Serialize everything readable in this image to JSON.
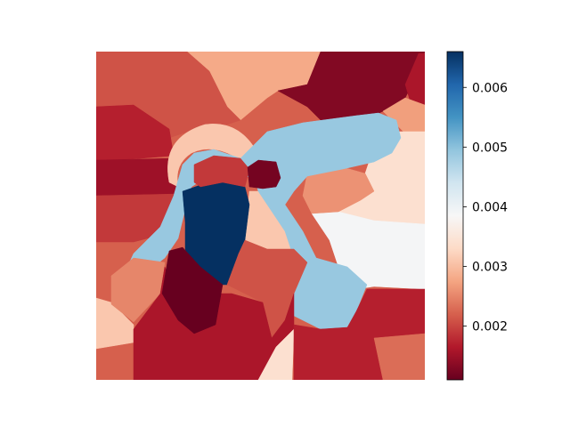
{
  "chart_data": {
    "type": "heatmap",
    "title": "",
    "xlabel": "",
    "ylabel": "",
    "colormap": "RdBu",
    "colorbar": {
      "range": [
        0.0011,
        0.0066
      ],
      "ticks": [
        {
          "value": 0.002,
          "label": "0.002"
        },
        {
          "value": 0.003,
          "label": "0.003"
        },
        {
          "value": 0.004,
          "label": "0.004"
        },
        {
          "value": 0.005,
          "label": "0.005"
        },
        {
          "value": 0.006,
          "label": "0.006"
        }
      ]
    },
    "segments": [
      {
        "name": "top-center",
        "value": 0.0028
      },
      {
        "name": "top-left",
        "value": 0.0021
      },
      {
        "name": "left-upper",
        "value": 0.0017
      },
      {
        "name": "left-middle",
        "value": 0.0015
      },
      {
        "name": "left-lower",
        "value": 0.0019
      },
      {
        "name": "top-right-dark",
        "value": 0.0013
      },
      {
        "name": "right-upper-edge",
        "value": 0.0016
      },
      {
        "name": "right-upper-orange",
        "value": 0.0027
      },
      {
        "name": "right-peach",
        "value": 0.0034
      },
      {
        "name": "right-light",
        "value": 0.0039
      },
      {
        "name": "orange-mid",
        "value": 0.0026
      },
      {
        "name": "center-peach",
        "value": 0.0031
      },
      {
        "name": "ring-peach",
        "value": 0.0031
      },
      {
        "name": "blue-arm",
        "value": 0.0049
      },
      {
        "name": "navy-blob",
        "value": 0.0066
      },
      {
        "name": "red-notch",
        "value": 0.0019
      },
      {
        "name": "dark-notch",
        "value": 0.0012
      },
      {
        "name": "center-red",
        "value": 0.0021
      },
      {
        "name": "bottom-left-peach",
        "value": 0.0031
      },
      {
        "name": "bottom-left-orange",
        "value": 0.0025
      },
      {
        "name": "bottom-red",
        "value": 0.0016
      },
      {
        "name": "bottom-dark",
        "value": 0.0011
      },
      {
        "name": "bottom-peach-strip",
        "value": 0.0034
      },
      {
        "name": "bottom-right-red",
        "value": 0.0017
      },
      {
        "name": "bottom-right-orange",
        "value": 0.0023
      }
    ]
  }
}
